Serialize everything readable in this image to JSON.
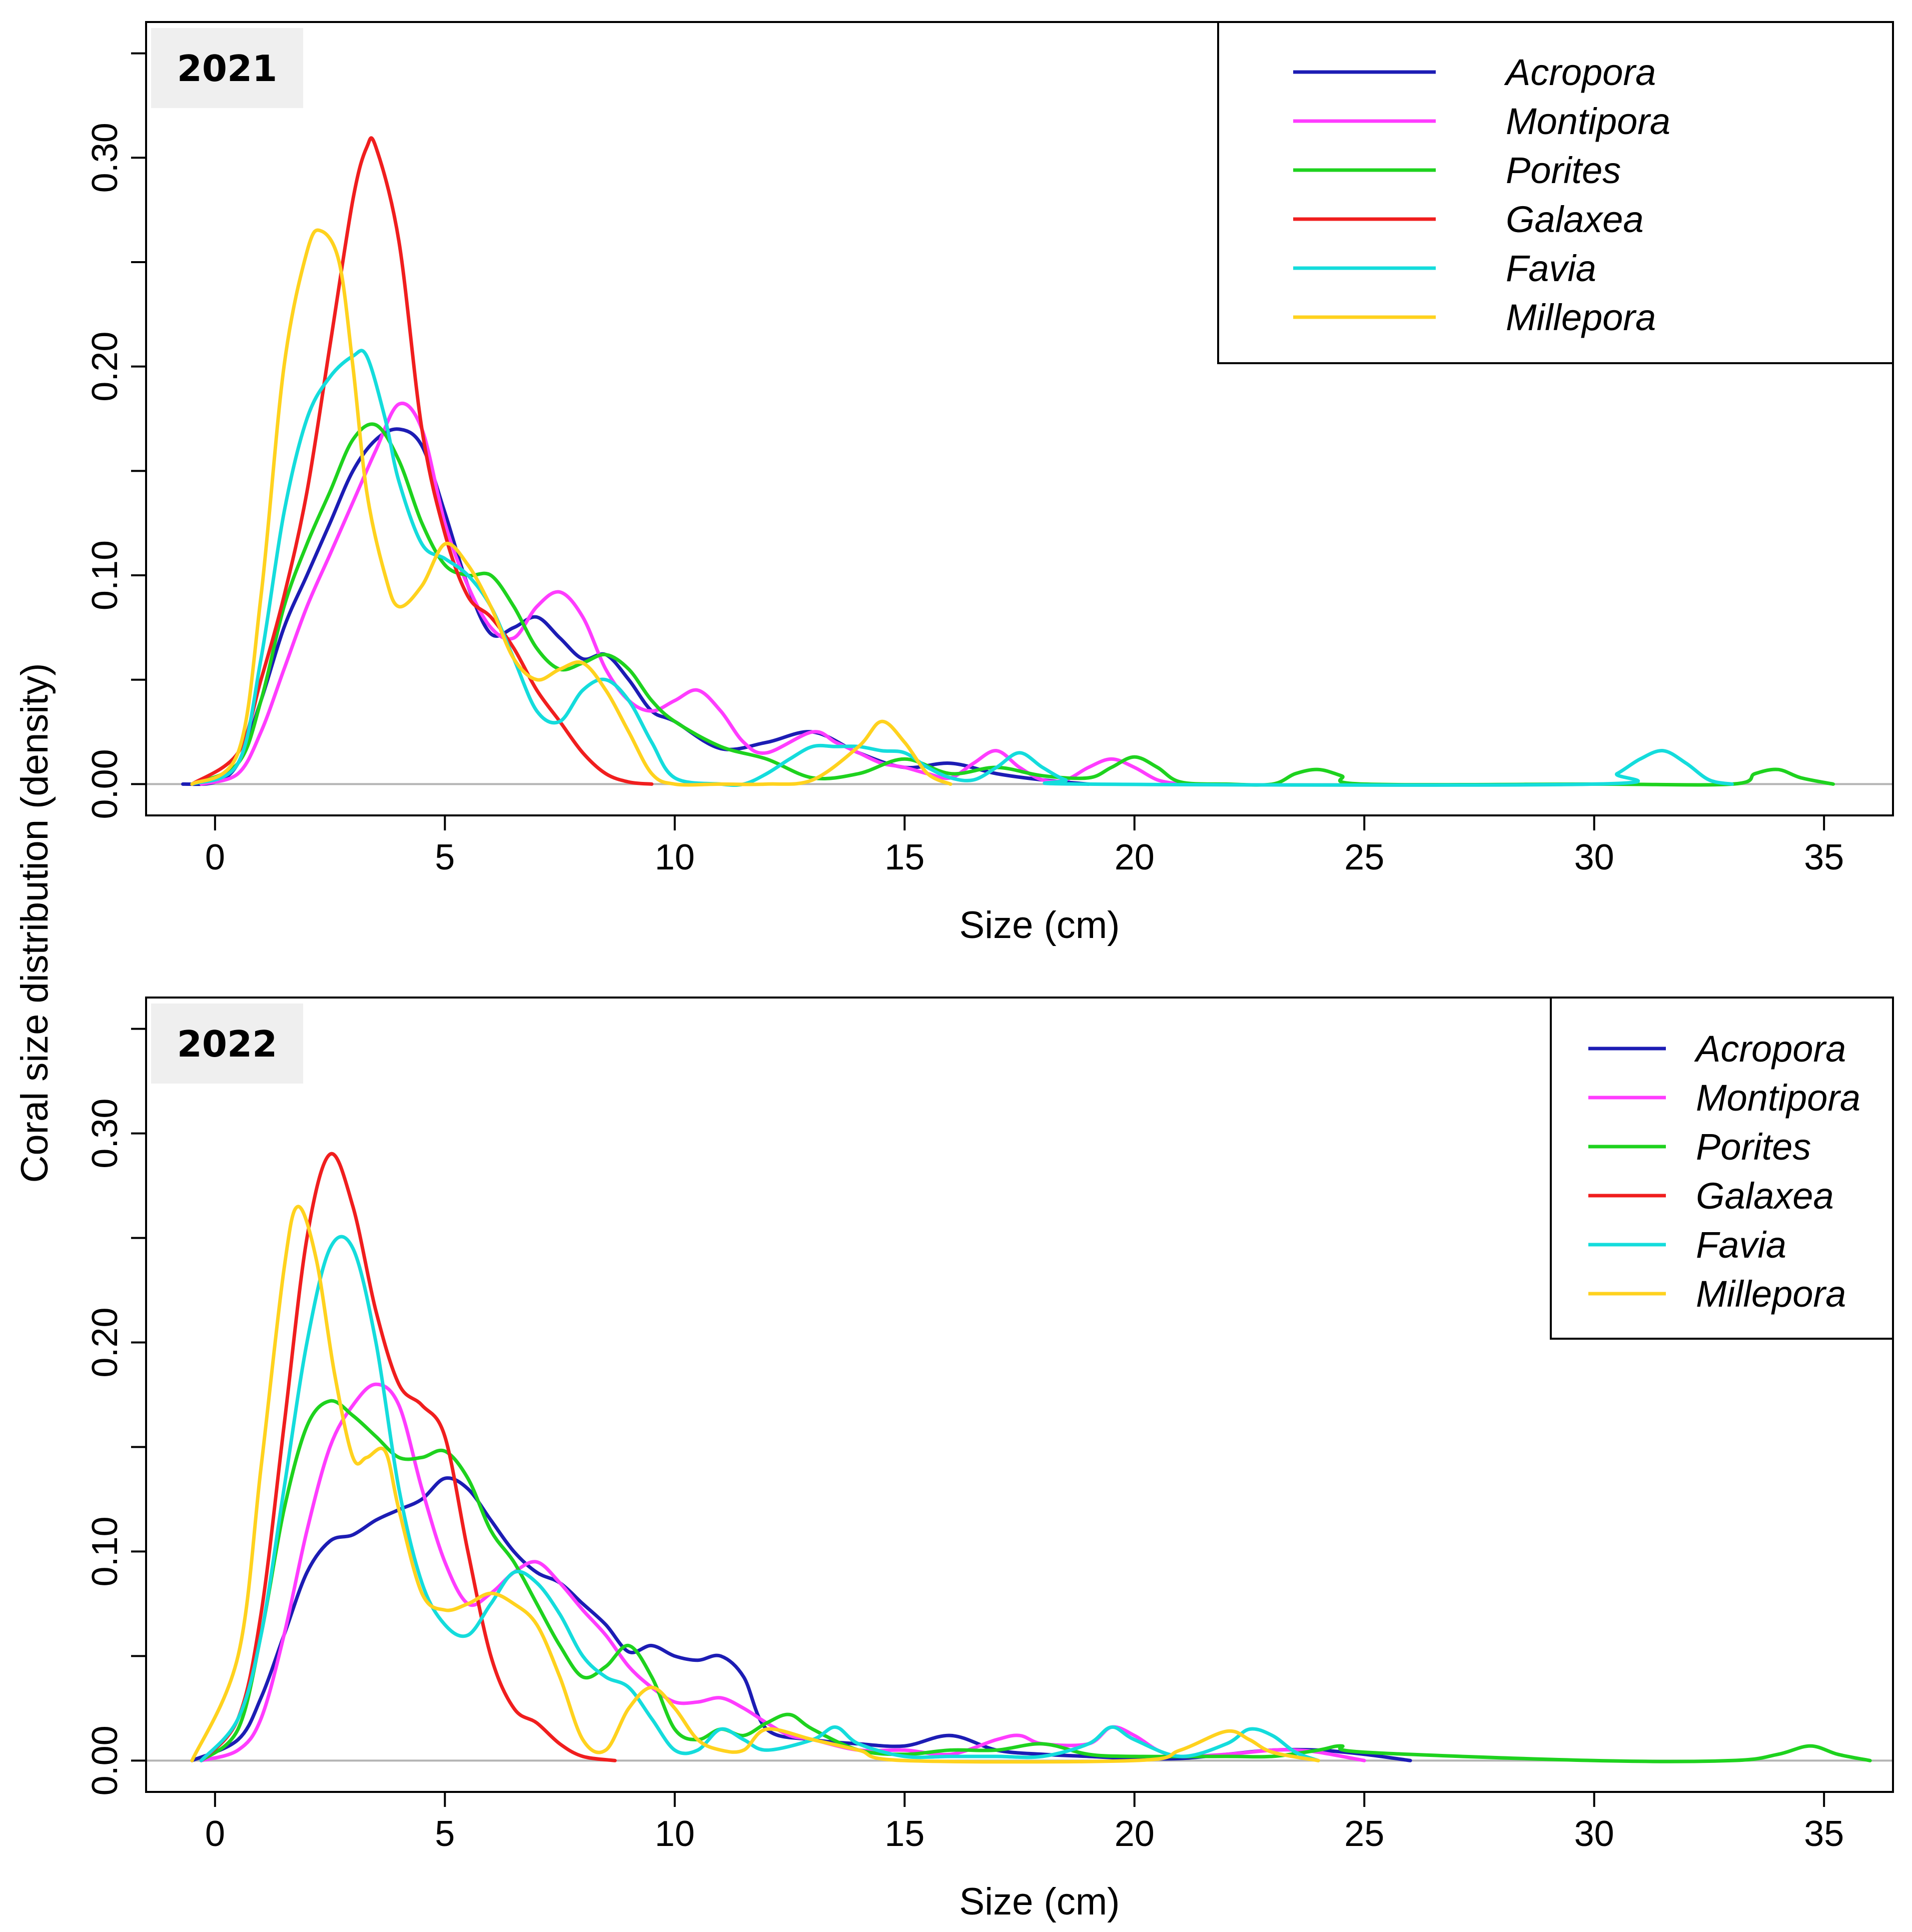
{
  "figure": {
    "ylabel": "Coral size distribution (density)"
  },
  "series_colors": {
    "Acropora": "#1c1cb4",
    "Montipora": "#ff3cff",
    "Porites": "#1ed21e",
    "Galaxea": "#f01e1e",
    "Favia": "#14dcdc",
    "Millepora": "#ffd21e"
  },
  "chart_data": [
    {
      "type": "line",
      "panel_label": "2021",
      "title": "",
      "xlabel": "Size (cm)",
      "ylabel": "Coral size distribution (density)",
      "xlim": [
        -1.5,
        36.5
      ],
      "ylim": [
        -0.015,
        0.365
      ],
      "xticks": [
        0,
        5,
        10,
        15,
        20,
        25,
        30,
        35
      ],
      "yticks": [
        0.0,
        0.05,
        0.1,
        0.15,
        0.2,
        0.25,
        0.3,
        0.35
      ],
      "ytick_labels": [
        "0.00",
        "",
        "0.10",
        "",
        "0.20",
        "",
        "0.30",
        ""
      ],
      "legend_position": "top-right",
      "series": [
        {
          "name": "Acropora",
          "x": [
            -0.7,
            0,
            0.5,
            1,
            1.5,
            2,
            2.5,
            3,
            3.5,
            4,
            4.5,
            5,
            5.5,
            6,
            6.5,
            7,
            7.5,
            8,
            8.5,
            9,
            9.5,
            10,
            11,
            12,
            13,
            14,
            15,
            16,
            17,
            18,
            19
          ],
          "y": [
            0,
            0.001,
            0.01,
            0.04,
            0.075,
            0.1,
            0.125,
            0.15,
            0.165,
            0.17,
            0.162,
            0.13,
            0.095,
            0.072,
            0.075,
            0.08,
            0.07,
            0.06,
            0.062,
            0.05,
            0.035,
            0.03,
            0.017,
            0.02,
            0.025,
            0.015,
            0.008,
            0.01,
            0.005,
            0.002,
            0
          ]
        },
        {
          "name": "Montipora",
          "x": [
            -0.3,
            0.5,
            1,
            1.5,
            2,
            2.5,
            3,
            3.5,
            4,
            4.5,
            5,
            5.5,
            6,
            6.5,
            7,
            7.5,
            8,
            8.5,
            9,
            9.5,
            10,
            10.5,
            11,
            11.5,
            12,
            13,
            13.5,
            14,
            14.5,
            15,
            15.5,
            16,
            16.5,
            17,
            17.5,
            18,
            18.5,
            19,
            19.5,
            20,
            20.5,
            21
          ],
          "y": [
            0,
            0.005,
            0.025,
            0.055,
            0.085,
            0.11,
            0.135,
            0.16,
            0.182,
            0.17,
            0.125,
            0.095,
            0.075,
            0.07,
            0.085,
            0.092,
            0.08,
            0.055,
            0.04,
            0.035,
            0.04,
            0.045,
            0.035,
            0.02,
            0.015,
            0.025,
            0.02,
            0.015,
            0.01,
            0.008,
            0.005,
            0.003,
            0.01,
            0.016,
            0.008,
            0.002,
            0.002,
            0.008,
            0.012,
            0.008,
            0.002,
            0
          ]
        },
        {
          "name": "Porites",
          "x": [
            -0.5,
            0.5,
            1,
            1.5,
            2,
            2.5,
            3,
            3.5,
            4,
            4.5,
            5,
            5.5,
            6,
            6.5,
            7,
            7.5,
            8,
            8.5,
            9,
            9.5,
            10,
            11,
            12,
            13,
            14,
            15,
            16,
            17,
            18,
            19,
            19.5,
            20,
            20.5,
            21,
            22,
            23,
            23.5,
            24,
            24.5,
            25,
            30,
            33,
            33.5,
            34,
            34.5,
            35.2
          ],
          "y": [
            0,
            0.01,
            0.04,
            0.085,
            0.115,
            0.14,
            0.165,
            0.172,
            0.155,
            0.125,
            0.105,
            0.1,
            0.1,
            0.085,
            0.065,
            0.055,
            0.058,
            0.062,
            0.055,
            0.04,
            0.03,
            0.018,
            0.012,
            0.003,
            0.005,
            0.012,
            0.005,
            0.008,
            0.004,
            0.003,
            0.008,
            0.013,
            0.008,
            0.001,
            0,
            0,
            0.005,
            0.007,
            0.004,
            0,
            0,
            0,
            0.005,
            0.007,
            0.003,
            0
          ]
        },
        {
          "name": "Galaxea",
          "x": [
            -0.5,
            0.5,
            1,
            1.5,
            2,
            2.5,
            3,
            3.3,
            3.5,
            4,
            4.5,
            5,
            5.5,
            6,
            6.5,
            7,
            7.5,
            8,
            8.5,
            9,
            9.5
          ],
          "y": [
            0,
            0.015,
            0.05,
            0.09,
            0.14,
            0.21,
            0.28,
            0.305,
            0.305,
            0.26,
            0.17,
            0.12,
            0.09,
            0.08,
            0.065,
            0.045,
            0.03,
            0.015,
            0.005,
            0.001,
            0
          ]
        },
        {
          "name": "Favia",
          "x": [
            -0.5,
            0.5,
            1,
            1.5,
            2,
            2.5,
            3,
            3.3,
            3.7,
            4,
            4.5,
            5,
            5.5,
            6,
            6.5,
            7,
            7.5,
            8,
            8.5,
            9,
            9.5,
            10,
            11,
            11.5,
            12,
            12.5,
            13,
            13.5,
            14,
            14.5,
            15,
            15.5,
            16,
            16.5,
            17,
            17.5,
            18,
            18.5,
            19,
            30,
            30.5,
            31,
            31.5,
            32,
            32.5,
            33
          ],
          "y": [
            0,
            0.01,
            0.06,
            0.13,
            0.175,
            0.195,
            0.205,
            0.205,
            0.175,
            0.145,
            0.115,
            0.108,
            0.1,
            0.085,
            0.06,
            0.035,
            0.03,
            0.045,
            0.05,
            0.04,
            0.02,
            0.003,
            0,
            0,
            0.005,
            0.012,
            0.018,
            0.018,
            0.018,
            0.016,
            0.015,
            0.008,
            0.003,
            0.002,
            0.008,
            0.015,
            0.008,
            0.002,
            0,
            0,
            0.005,
            0.012,
            0.016,
            0.01,
            0.002,
            0
          ]
        },
        {
          "name": "Millepora",
          "x": [
            -0.5,
            0.5,
            1,
            1.5,
            2,
            2.3,
            2.7,
            3,
            3.3,
            3.7,
            4,
            4.5,
            5,
            5.5,
            6,
            6.5,
            7,
            7.5,
            8,
            8.5,
            9,
            9.5,
            10,
            11,
            12,
            13,
            14,
            14.5,
            15,
            15.5,
            16
          ],
          "y": [
            0,
            0.015,
            0.09,
            0.2,
            0.255,
            0.265,
            0.25,
            0.2,
            0.14,
            0.1,
            0.085,
            0.095,
            0.115,
            0.105,
            0.085,
            0.06,
            0.05,
            0.055,
            0.058,
            0.045,
            0.025,
            0.005,
            0,
            0,
            0,
            0.002,
            0.018,
            0.03,
            0.02,
            0.005,
            0
          ]
        }
      ]
    },
    {
      "type": "line",
      "panel_label": "2022",
      "title": "",
      "xlabel": "Size (cm)",
      "ylabel": "Coral size distribution (density)",
      "xlim": [
        -1.5,
        36.5
      ],
      "ylim": [
        -0.015,
        0.365
      ],
      "xticks": [
        0,
        5,
        10,
        15,
        20,
        25,
        30,
        35
      ],
      "yticks": [
        0.0,
        0.05,
        0.1,
        0.15,
        0.2,
        0.25,
        0.3,
        0.35
      ],
      "ytick_labels": [
        "0.00",
        "",
        "0.10",
        "",
        "0.20",
        "",
        "0.30",
        ""
      ],
      "legend_position": "top-right",
      "series": [
        {
          "name": "Acropora",
          "x": [
            -0.5,
            0.5,
            1,
            1.5,
            2,
            2.5,
            3,
            3.5,
            4,
            4.5,
            5,
            5.5,
            6,
            6.5,
            7,
            7.5,
            8,
            8.5,
            9,
            9.5,
            10,
            10.5,
            11,
            11.5,
            12,
            13,
            14,
            15,
            16,
            17,
            18,
            19,
            20,
            21,
            22,
            23,
            24,
            25,
            26
          ],
          "y": [
            0,
            0.01,
            0.03,
            0.06,
            0.09,
            0.105,
            0.108,
            0.115,
            0.12,
            0.125,
            0.135,
            0.13,
            0.115,
            0.1,
            0.09,
            0.085,
            0.075,
            0.065,
            0.052,
            0.055,
            0.05,
            0.048,
            0.05,
            0.04,
            0.015,
            0.01,
            0.008,
            0.007,
            0.012,
            0.005,
            0.003,
            0.002,
            0.001,
            0.001,
            0.003,
            0.005,
            0.005,
            0.003,
            0
          ]
        },
        {
          "name": "Montipora",
          "x": [
            -0.3,
            0.5,
            1,
            1.5,
            2,
            2.5,
            3,
            3.5,
            4,
            4.5,
            5,
            5.5,
            6,
            6.5,
            7,
            7.5,
            8,
            8.5,
            9,
            9.5,
            10,
            10.5,
            11,
            11.5,
            12,
            12.5,
            13,
            14,
            15,
            16,
            17,
            17.5,
            18,
            19,
            19.5,
            20,
            20.5,
            21,
            22,
            23,
            23.5,
            24,
            25
          ],
          "y": [
            0,
            0.005,
            0.02,
            0.06,
            0.11,
            0.15,
            0.17,
            0.18,
            0.17,
            0.13,
            0.095,
            0.075,
            0.08,
            0.09,
            0.095,
            0.085,
            0.072,
            0.06,
            0.045,
            0.035,
            0.028,
            0.028,
            0.03,
            0.025,
            0.018,
            0.012,
            0.01,
            0.005,
            0.005,
            0.003,
            0.01,
            0.012,
            0.008,
            0.008,
            0.016,
            0.012,
            0.005,
            0.002,
            0.003,
            0.005,
            0.005,
            0.004,
            0
          ]
        },
        {
          "name": "Porites",
          "x": [
            -0.3,
            0.5,
            1,
            1.5,
            2,
            2.5,
            3,
            3.5,
            4,
            4.5,
            5,
            5.5,
            6,
            6.5,
            7,
            7.5,
            8,
            8.5,
            9,
            9.5,
            10,
            10.5,
            11,
            11.5,
            12,
            12.5,
            13,
            14,
            15,
            16,
            17,
            18,
            19,
            20,
            22,
            23,
            24,
            24.5,
            25,
            30,
            33,
            34,
            34.7,
            35.3,
            36
          ],
          "y": [
            0,
            0.015,
            0.06,
            0.12,
            0.16,
            0.172,
            0.165,
            0.155,
            0.145,
            0.145,
            0.148,
            0.135,
            0.11,
            0.095,
            0.075,
            0.055,
            0.04,
            0.045,
            0.055,
            0.04,
            0.015,
            0.01,
            0.015,
            0.012,
            0.018,
            0.022,
            0.015,
            0.005,
            0.003,
            0.005,
            0.005,
            0.008,
            0.003,
            0.002,
            0.002,
            0.002,
            0.005,
            0.007,
            0.004,
            0,
            0,
            0.003,
            0.007,
            0.003,
            0
          ]
        },
        {
          "name": "Galaxea",
          "x": [
            -0.3,
            0.5,
            1,
            1.5,
            2,
            2.5,
            3,
            3.5,
            4,
            4.5,
            5,
            5.5,
            6,
            6.5,
            7,
            7.5,
            8,
            8.7
          ],
          "y": [
            0,
            0.02,
            0.07,
            0.16,
            0.25,
            0.29,
            0.265,
            0.215,
            0.18,
            0.17,
            0.155,
            0.1,
            0.05,
            0.025,
            0.018,
            0.008,
            0.002,
            0
          ]
        },
        {
          "name": "Favia",
          "x": [
            -0.3,
            0.5,
            1,
            1.5,
            2,
            2.5,
            3,
            3.5,
            4,
            4.5,
            5,
            5.5,
            6,
            6.5,
            7,
            7.5,
            8,
            8.5,
            9,
            9.5,
            10,
            10.5,
            11,
            11.5,
            12,
            13,
            13.5,
            14,
            15,
            16,
            17,
            18,
            19,
            19.5,
            20,
            21,
            22,
            22.5,
            23,
            23.5,
            24
          ],
          "y": [
            0,
            0.02,
            0.06,
            0.13,
            0.2,
            0.245,
            0.245,
            0.2,
            0.13,
            0.085,
            0.065,
            0.06,
            0.075,
            0.09,
            0.085,
            0.07,
            0.05,
            0.04,
            0.035,
            0.02,
            0.005,
            0.005,
            0.015,
            0.01,
            0.005,
            0.01,
            0.016,
            0.008,
            0.002,
            0.002,
            0.002,
            0.002,
            0.008,
            0.016,
            0.01,
            0.002,
            0.008,
            0.015,
            0.012,
            0.004,
            0
          ]
        },
        {
          "name": "Millepora",
          "x": [
            -0.5,
            0.5,
            1,
            1.5,
            1.8,
            2.2,
            2.6,
            3,
            3.3,
            3.7,
            4,
            4.5,
            5,
            5.5,
            6,
            6.5,
            7,
            7.5,
            8,
            8.5,
            9,
            9.5,
            10,
            10.5,
            11,
            11.5,
            12,
            13,
            14,
            15,
            20,
            21,
            22,
            22.5,
            23,
            24
          ],
          "y": [
            0,
            0.05,
            0.14,
            0.235,
            0.265,
            0.24,
            0.185,
            0.145,
            0.145,
            0.148,
            0.12,
            0.08,
            0.072,
            0.075,
            0.08,
            0.075,
            0.065,
            0.04,
            0.01,
            0.005,
            0.025,
            0.035,
            0.025,
            0.01,
            0.005,
            0.005,
            0.015,
            0.01,
            0.005,
            0,
            0,
            0.005,
            0.014,
            0.01,
            0.004,
            0
          ]
        }
      ]
    }
  ]
}
